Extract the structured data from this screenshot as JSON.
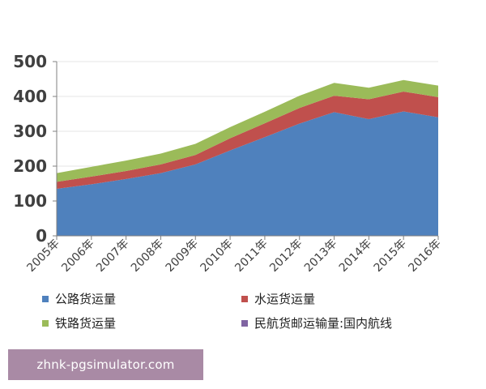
{
  "chart_data": {
    "type": "area",
    "stacked": true,
    "categories": [
      "2005年",
      "2006年",
      "2007年",
      "2008年",
      "2009年",
      "2010年",
      "2011年",
      "2012年",
      "2013年",
      "2014年",
      "2015年",
      "2016年"
    ],
    "series": [
      {
        "name": "公路货运量",
        "color": "#4f81bd",
        "values": [
          135,
          148,
          163,
          180,
          205,
          245,
          283,
          322,
          355,
          335,
          357,
          340
        ]
      },
      {
        "name": "水运货运量",
        "color": "#c0504d",
        "values": [
          20,
          22,
          23,
          25,
          27,
          35,
          40,
          45,
          47,
          57,
          57,
          58
        ]
      },
      {
        "name": "铁路货运量",
        "color": "#9bbb59",
        "values": [
          25,
          28,
          30,
          31,
          32,
          32,
          33,
          35,
          37,
          33,
          33,
          33
        ]
      },
      {
        "name": "民航货邮运输量:国内航线",
        "color": "#8064a2",
        "values": [
          0,
          0,
          0,
          0,
          0,
          0,
          0,
          0,
          0,
          0,
          0,
          0
        ]
      }
    ],
    "ylim": [
      0,
      500
    ],
    "yticks": [
      0,
      100,
      200,
      300,
      400,
      500
    ],
    "title": "",
    "xlabel": "",
    "ylabel": ""
  },
  "watermark": "zhnk-pgsimulator.com"
}
